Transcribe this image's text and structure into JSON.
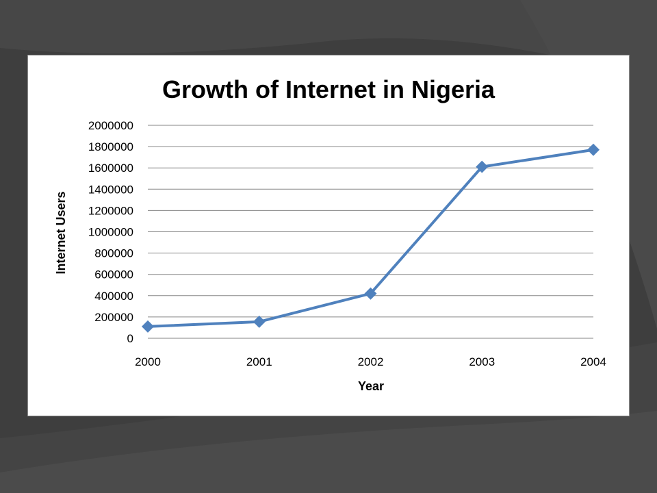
{
  "theme": {
    "background": "#3c3c3c",
    "panel": "#ffffff",
    "series_color": "#4f81bd",
    "grid_color": "#868686"
  },
  "chart_data": {
    "type": "line",
    "title": "Growth of Internet in Nigeria",
    "xlabel": "Year",
    "ylabel": "Internet Users",
    "x": [
      "2000",
      "2001",
      "2002",
      "2003",
      "2004"
    ],
    "series": [
      {
        "values": [
          110000,
          155000,
          420000,
          1610000,
          1770000
        ]
      }
    ],
    "ylim": [
      0,
      2000000
    ],
    "yticks": [
      "0",
      "200000",
      "400000",
      "600000",
      "800000",
      "1000000",
      "1200000",
      "1400000",
      "1600000",
      "1800000",
      "2000000"
    ],
    "grid": true,
    "marker": "diamond",
    "legend": "none"
  }
}
